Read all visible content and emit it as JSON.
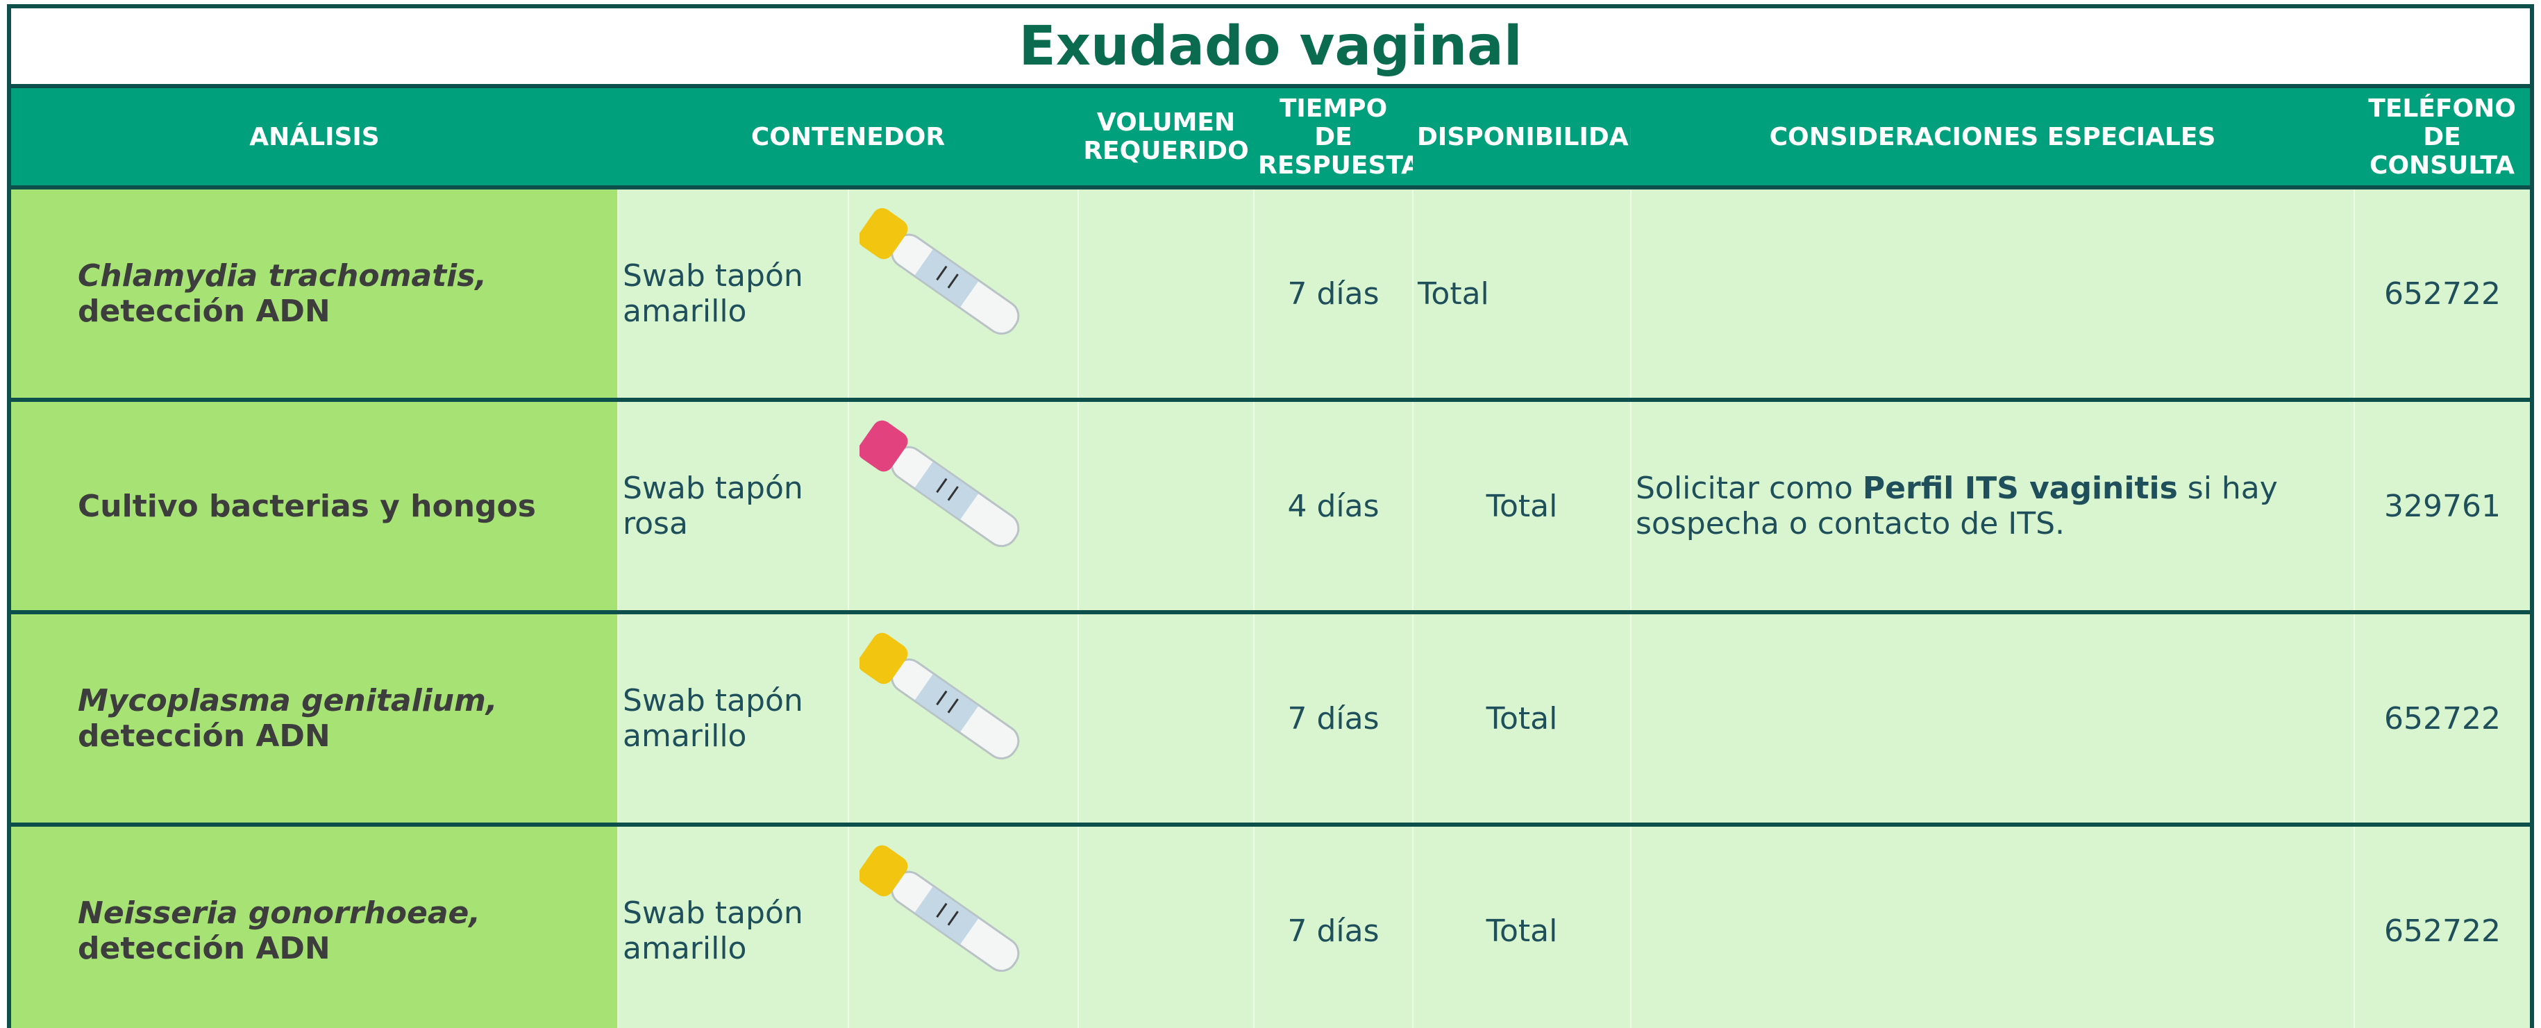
{
  "header": {
    "title": "Exudado vaginal"
  },
  "columns": [
    "ANÁLISIS",
    "CONTENEDOR",
    "VOLUMEN REQUERIDO",
    "TIEMPO DE RESPUESTA",
    "DISPONIBILIDAD",
    "CONSIDERACIONES ESPECIALES",
    "TELÉFONO DE CONSULTA"
  ],
  "rows": [
    {
      "analysis": {
        "species": "Chlamydia trachomatis,",
        "detail": "detección ADN"
      },
      "container": "Swab tapón amarillo",
      "time": "7 días",
      "availability": "Total",
      "phone": "652722"
    },
    {
      "analysis": {
        "detail": "Cultivo bacterias y hongos"
      },
      "container": "Swab tapón rosa",
      "time": "4 días",
      "availability": "Total",
      "considerations": [
        "Solicitar como",
        "Perfil ITS vaginitis",
        "si hay sospecha o contacto de ITS."
      ],
      "phone": "329761"
    },
    {
      "analysis": {
        "species": "Mycoplasma genitalium,",
        "detail": "detección ADN"
      },
      "container": "Swab tapón amarillo",
      "time": "7 días",
      "availability": "Total",
      "phone": "652722"
    },
    {
      "analysis": {
        "species": "Neisseria gonorrhoeae,",
        "detail": "detección ADN"
      },
      "container": "Swab tapón amarillo",
      "time": "7 días",
      "availability": "Total",
      "phone": "652722"
    }
  ]
}
